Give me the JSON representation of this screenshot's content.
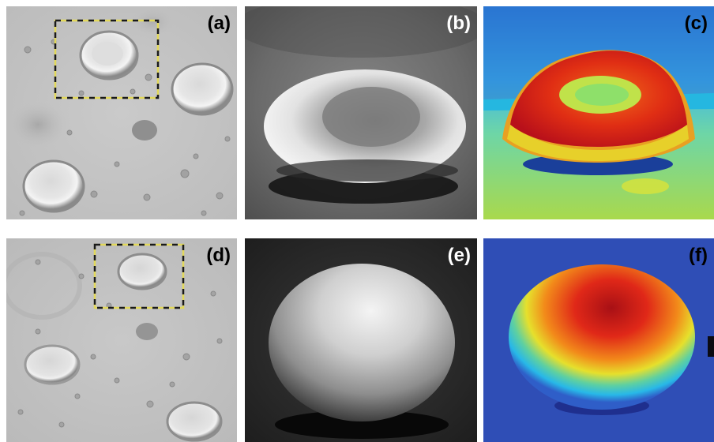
{
  "panels": {
    "a": {
      "label": "(a)"
    },
    "b": {
      "label": "(b)"
    },
    "c": {
      "label": "(c)"
    },
    "d": {
      "label": "(d)"
    },
    "e": {
      "label": "(e)"
    },
    "f": {
      "label": "(f)"
    }
  },
  "colors": {
    "microscope_background": "#c4c4c4",
    "selection_box_dash_a": "#1a1a1a",
    "selection_box_dash_b": "#e2d85a",
    "surface_peak": "#c8161a",
    "surface_low": "#2a3aa8"
  }
}
